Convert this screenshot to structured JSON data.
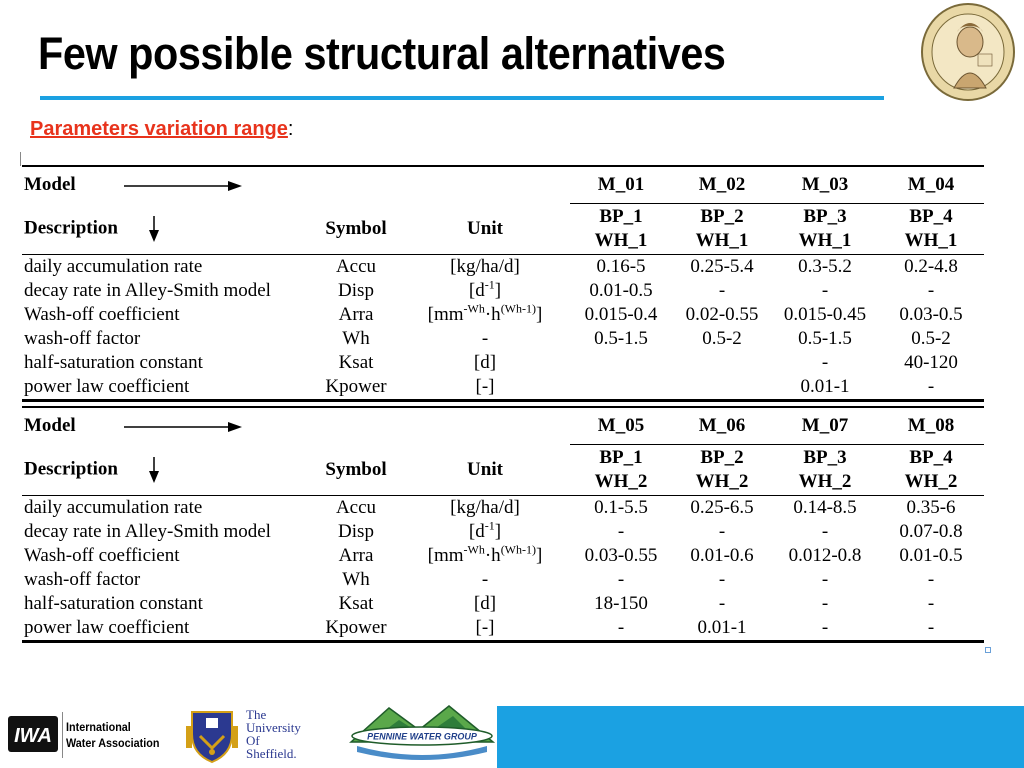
{
  "title": "Few possible structural alternatives",
  "subtitle": "Parameters variation range",
  "subtitle_suffix": ":",
  "colors": {
    "accent_blue": "#1ba1e2",
    "subtitle_red": "#e8331c"
  },
  "table": {
    "header_labels": {
      "model": "Model",
      "description": "Description",
      "symbol": "Symbol",
      "unit": "Unit"
    },
    "sections": [
      {
        "models": [
          "M_01",
          "M_02",
          "M_03",
          "M_04"
        ],
        "bp": [
          "BP_1",
          "BP_2",
          "BP_3",
          "BP_4"
        ],
        "wh": [
          "WH_1",
          "WH_1",
          "WH_1",
          "WH_1"
        ],
        "rows": [
          {
            "desc": "daily accumulation rate",
            "symbol": "Accu",
            "unit": "[kg/ha/d]",
            "values": [
              "0.16-5",
              "0.25-5.4",
              "0.3-5.2",
              "0.2-4.8"
            ]
          },
          {
            "desc": "decay rate in Alley-Smith model",
            "symbol": "Disp",
            "unit_base": "[d",
            "unit_sup": "-1",
            "unit_end": "]",
            "values": [
              "0.01-0.5",
              "-",
              "-",
              "-"
            ]
          },
          {
            "desc": "Wash-off coefficient",
            "symbol": "Arra",
            "unit_a": "[mm",
            "unit_sup1": "-Wh",
            "unit_b": "·h",
            "unit_sup2": "(Wh-1)",
            "unit_end": "]",
            "values": [
              "0.015-0.4",
              "0.02-0.55",
              "0.015-0.45",
              "0.03-0.5"
            ]
          },
          {
            "desc": "wash-off factor",
            "symbol": "Wh",
            "unit": "-",
            "values": [
              "0.5-1.5",
              "0.5-2",
              "0.5-1.5",
              "0.5-2"
            ]
          },
          {
            "desc": "half-saturation constant",
            "symbol": "Ksat",
            "unit": "[d]",
            "values": [
              "",
              "",
              "-",
              "40-120"
            ]
          },
          {
            "desc": "power law coefficient",
            "symbol": "Kpower",
            "unit": "[-]",
            "values": [
              "",
              "",
              "0.01-1",
              "-"
            ]
          }
        ]
      },
      {
        "models": [
          "M_05",
          "M_06",
          "M_07",
          "M_08"
        ],
        "bp": [
          "BP_1",
          "BP_2",
          "BP_3",
          "BP_4"
        ],
        "wh": [
          "WH_2",
          "WH_2",
          "WH_2",
          "WH_2"
        ],
        "rows": [
          {
            "desc": "daily accumulation rate",
            "symbol": "Accu",
            "unit": "[kg/ha/d]",
            "values": [
              "0.1-5.5",
              "0.25-6.5",
              "0.14-8.5",
              "0.35-6"
            ]
          },
          {
            "desc": "decay rate in Alley-Smith model",
            "symbol": "Disp",
            "unit_base": "[d",
            "unit_sup": "-1",
            "unit_end": "]",
            "values": [
              "-",
              "-",
              "-",
              "0.07-0.8"
            ]
          },
          {
            "desc": "Wash-off coefficient",
            "symbol": "Arra",
            "unit_a": "[mm",
            "unit_sup1": "-Wh",
            "unit_b": "·h",
            "unit_sup2": "(Wh-1)",
            "unit_end": "]",
            "values": [
              "0.03-0.55",
              "0.01-0.6",
              "0.012-0.8",
              "0.01-0.5"
            ]
          },
          {
            "desc": "wash-off factor",
            "symbol": "Wh",
            "unit": "-",
            "values": [
              "-",
              "-",
              "-",
              "-"
            ]
          },
          {
            "desc": "half-saturation constant",
            "symbol": "Ksat",
            "unit": "[d]",
            "values": [
              "18-150",
              "-",
              "-",
              "-"
            ]
          },
          {
            "desc": "power law coefficient",
            "symbol": "Kpower",
            "unit": "[-]",
            "values": [
              "-",
              "0.01-1",
              "-",
              "-"
            ]
          }
        ]
      }
    ]
  },
  "footer": {
    "iwa_mark": "IWA",
    "iwa_line1": "International",
    "iwa_line2": "Water Association",
    "sheffield_lines": [
      "The",
      "University",
      "Of",
      "Sheffield."
    ],
    "pennine": "PENNINE WATER GROUP"
  },
  "icons": {
    "seal": "university-seal-icon",
    "iwa": "iwa-logo-icon",
    "crest": "sheffield-crest-icon",
    "pennine": "pennine-logo-icon"
  }
}
